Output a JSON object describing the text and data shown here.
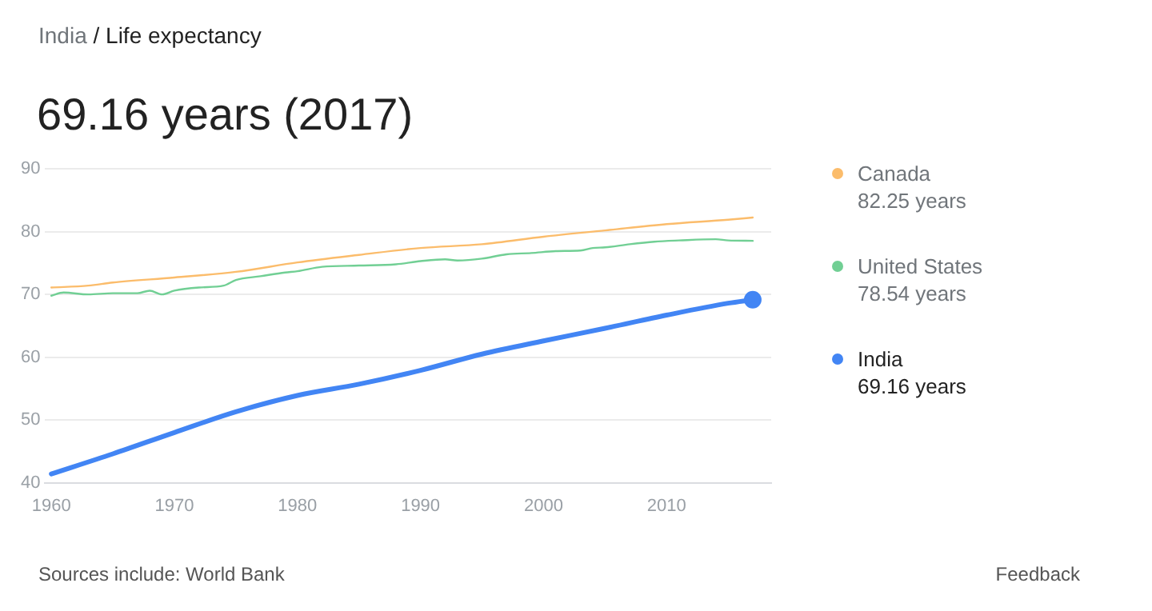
{
  "chart_data": {
    "type": "line",
    "subtitle": "India / Life expectancy",
    "title": "69.16 years (2017)",
    "series": [
      {
        "name": "Canada",
        "color": "#fbbc6b",
        "x": [
          1960,
          1963,
          1965,
          1970,
          1975,
          1980,
          1985,
          1990,
          1995,
          2000,
          2005,
          2010,
          2015,
          2017
        ],
        "values": [
          71.1,
          71.4,
          71.9,
          72.7,
          73.6,
          75.1,
          76.3,
          77.4,
          78.0,
          79.2,
          80.2,
          81.2,
          81.9,
          82.25
        ]
      },
      {
        "name": "United States",
        "color": "#71cf94",
        "x": [
          1960,
          1961,
          1963,
          1965,
          1967,
          1968,
          1969,
          1970,
          1972,
          1974,
          1975,
          1977,
          1979,
          1980,
          1982,
          1985,
          1988,
          1990,
          1992,
          1993,
          1995,
          1997,
          1999,
          2001,
          2003,
          2004,
          2005,
          2007,
          2009,
          2011,
          2014,
          2015,
          2017
        ],
        "values": [
          69.8,
          70.3,
          70.0,
          70.2,
          70.2,
          70.6,
          70.0,
          70.6,
          71.1,
          71.4,
          72.3,
          72.9,
          73.5,
          73.7,
          74.4,
          74.6,
          74.8,
          75.3,
          75.6,
          75.4,
          75.7,
          76.4,
          76.6,
          76.9,
          77.0,
          77.4,
          77.5,
          78.0,
          78.4,
          78.6,
          78.8,
          78.6,
          78.54
        ]
      },
      {
        "name": "India",
        "color": "#4285f4",
        "x": [
          1960,
          1965,
          1970,
          1975,
          1980,
          1985,
          1990,
          1995,
          2000,
          2005,
          2010,
          2015,
          2017
        ],
        "values": [
          41.4,
          44.6,
          48.0,
          51.3,
          53.9,
          55.7,
          57.9,
          60.5,
          62.6,
          64.6,
          66.7,
          68.6,
          69.16
        ]
      },
      {
        "type": "scatter",
        "color": "#4285f4",
        "marker": "circle",
        "x": [
          2017
        ],
        "values": [
          69.16
        ]
      }
    ],
    "xlim": [
      1959.5,
      2018.5
    ],
    "xticks": [
      1960,
      1970,
      1980,
      1990,
      2000,
      2010
    ],
    "ylim": [
      40,
      90
    ],
    "yticks": [
      40,
      50,
      60,
      70,
      80,
      90
    ],
    "grid": "y",
    "legend": "right",
    "annotations": [
      "82.25 years",
      "78.54 years",
      "69.16 years",
      "Sources include: World Bank",
      "Feedback"
    ]
  }
}
